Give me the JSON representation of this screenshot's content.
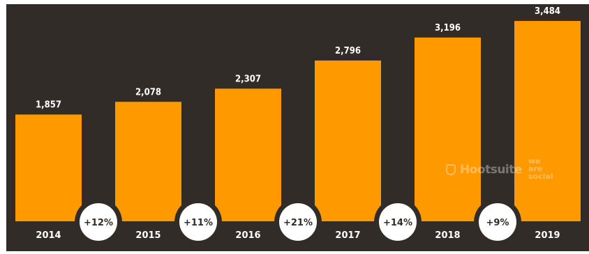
{
  "chart_data": {
    "type": "bar",
    "categories": [
      "2014",
      "2015",
      "2016",
      "2017",
      "2018",
      "2019"
    ],
    "values": [
      1857,
      2078,
      2307,
      2796,
      3196,
      3484
    ],
    "value_labels": [
      "1,857",
      "2,078",
      "2,307",
      "2,796",
      "3,196",
      "3,484"
    ],
    "growth_labels": [
      "+12%",
      "+11%",
      "+21%",
      "+14%",
      "+9%"
    ],
    "title": "",
    "xlabel": "",
    "ylabel": "",
    "ylim": [
      0,
      3800
    ],
    "grid": false,
    "legend": "none",
    "colors": {
      "bar": "#ff9900",
      "background": "#322c28",
      "label_text": "#ffffff",
      "bubble": "#ffffff",
      "bubble_text": "#322c28"
    }
  },
  "watermark": {
    "brand": "Hootsuite",
    "partner": "we are social"
  }
}
